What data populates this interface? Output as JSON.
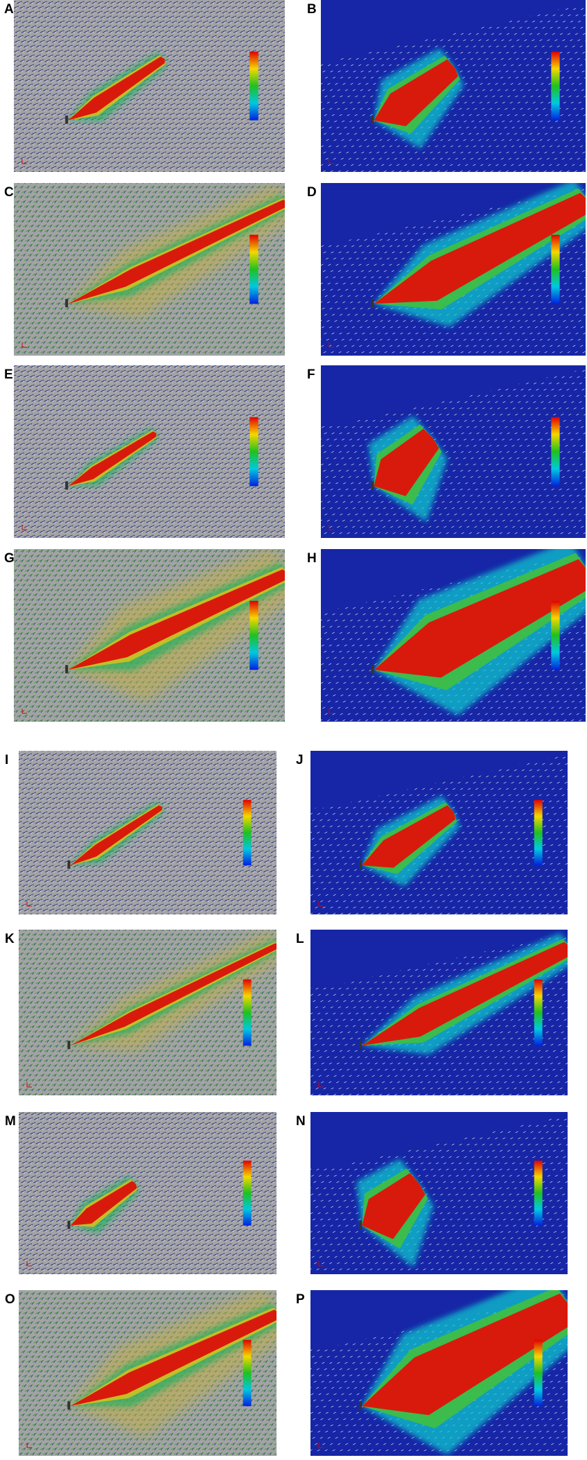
{
  "panels": [
    {
      "label": "A"
    },
    {
      "label": "B"
    },
    {
      "label": "C"
    },
    {
      "label": "D"
    },
    {
      "label": "E"
    },
    {
      "label": "F"
    },
    {
      "label": "G"
    },
    {
      "label": "H"
    },
    {
      "label": "I"
    },
    {
      "label": "J"
    },
    {
      "label": "K"
    },
    {
      "label": "L"
    },
    {
      "label": "M"
    },
    {
      "label": "N"
    },
    {
      "label": "O"
    },
    {
      "label": "P"
    }
  ]
}
